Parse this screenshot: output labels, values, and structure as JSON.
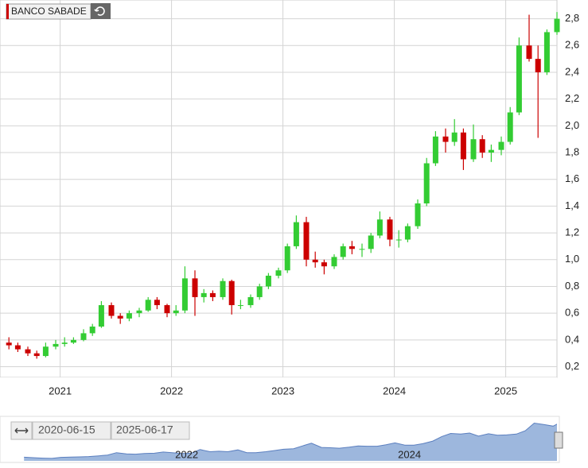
{
  "chart_data": {
    "type": "candlestick",
    "title": "BANCO SABADE",
    "range_start": "2020-06-15",
    "range_end": "2025-06-17",
    "up_color": "#33cc33",
    "down_color": "#cc0000",
    "grid": true,
    "xlim": [
      2020.46,
      2025.46
    ],
    "xticks": [
      2021,
      2022,
      2023,
      2024,
      2025
    ],
    "ylim": [
      0.12,
      2.94
    ],
    "yticks": [
      {
        "value": 0.2,
        "label": "0,2"
      },
      {
        "value": 0.4,
        "label": "0,4"
      },
      {
        "value": 0.6,
        "label": "0,6"
      },
      {
        "value": 0.8,
        "label": "0,8"
      },
      {
        "value": 1.0,
        "label": "1,0"
      },
      {
        "value": 1.2,
        "label": "1,2"
      },
      {
        "value": 1.4,
        "label": "1,4"
      },
      {
        "value": 1.6,
        "label": "1,6"
      },
      {
        "value": 1.8,
        "label": "1,8"
      },
      {
        "value": 2.0,
        "label": "2,0"
      },
      {
        "value": 2.2,
        "label": "2,2"
      },
      {
        "value": 2.4,
        "label": "2,4"
      },
      {
        "value": 2.6,
        "label": "2,6"
      },
      {
        "value": 2.8,
        "label": "2,8"
      }
    ],
    "navigator_xticks": [
      2022,
      2024
    ],
    "navigator_color": "#9db7dd",
    "x": [
      2020.54,
      2020.62,
      2020.71,
      2020.79,
      2020.87,
      2020.96,
      2021.04,
      2021.12,
      2021.21,
      2021.29,
      2021.37,
      2021.46,
      2021.54,
      2021.62,
      2021.71,
      2021.79,
      2021.87,
      2021.96,
      2022.04,
      2022.12,
      2022.21,
      2022.29,
      2022.37,
      2022.46,
      2022.54,
      2022.62,
      2022.71,
      2022.79,
      2022.87,
      2022.96,
      2023.04,
      2023.12,
      2023.21,
      2023.29,
      2023.37,
      2023.46,
      2023.54,
      2023.62,
      2023.71,
      2023.79,
      2023.87,
      2023.96,
      2024.04,
      2024.12,
      2024.21,
      2024.29,
      2024.37,
      2024.46,
      2024.54,
      2024.62,
      2024.71,
      2024.79,
      2024.87,
      2024.96,
      2025.04,
      2025.12,
      2025.21,
      2025.29,
      2025.37,
      2025.46
    ],
    "open": [
      0.38,
      0.36,
      0.33,
      0.3,
      0.28,
      0.35,
      0.37,
      0.38,
      0.4,
      0.45,
      0.5,
      0.66,
      0.58,
      0.56,
      0.6,
      0.62,
      0.7,
      0.66,
      0.6,
      0.62,
      0.86,
      0.72,
      0.75,
      0.72,
      0.84,
      0.66,
      0.66,
      0.72,
      0.8,
      0.88,
      0.92,
      1.1,
      1.28,
      1.0,
      0.98,
      0.95,
      1.02,
      1.1,
      1.08,
      1.08,
      1.18,
      1.3,
      1.15,
      1.15,
      1.25,
      1.42,
      1.72,
      1.92,
      1.88,
      1.95,
      1.75,
      1.9,
      1.8,
      1.82,
      1.88,
      2.1,
      2.6,
      2.5,
      2.4,
      2.7
    ],
    "high": [
      0.42,
      0.38,
      0.35,
      0.32,
      0.38,
      0.4,
      0.42,
      0.42,
      0.48,
      0.52,
      0.69,
      0.68,
      0.6,
      0.62,
      0.64,
      0.72,
      0.72,
      0.67,
      0.66,
      0.95,
      0.92,
      0.78,
      0.77,
      0.86,
      0.85,
      0.7,
      0.74,
      0.82,
      0.9,
      0.94,
      1.12,
      1.33,
      1.32,
      1.06,
      1.0,
      1.04,
      1.12,
      1.14,
      1.12,
      1.2,
      1.36,
      1.32,
      1.22,
      1.27,
      1.45,
      1.76,
      1.96,
      1.98,
      2.05,
      1.98,
      2.01,
      1.93,
      1.86,
      1.92,
      2.14,
      2.66,
      2.83,
      2.6,
      2.72,
      2.85
    ],
    "low": [
      0.33,
      0.31,
      0.28,
      0.26,
      0.27,
      0.33,
      0.35,
      0.37,
      0.39,
      0.43,
      0.49,
      0.56,
      0.52,
      0.54,
      0.57,
      0.61,
      0.63,
      0.57,
      0.58,
      0.6,
      0.58,
      0.68,
      0.69,
      0.7,
      0.59,
      0.63,
      0.64,
      0.7,
      0.78,
      0.86,
      0.9,
      1.08,
      0.95,
      0.94,
      0.89,
      0.93,
      1.0,
      1.04,
      1.02,
      1.05,
      1.16,
      1.1,
      1.09,
      1.13,
      1.23,
      1.4,
      1.7,
      1.8,
      1.85,
      1.67,
      1.73,
      1.76,
      1.73,
      1.78,
      1.86,
      2.08,
      2.48,
      1.91,
      2.38,
      2.68
    ],
    "close": [
      0.36,
      0.33,
      0.3,
      0.28,
      0.35,
      0.37,
      0.38,
      0.4,
      0.45,
      0.5,
      0.66,
      0.58,
      0.56,
      0.6,
      0.62,
      0.7,
      0.66,
      0.6,
      0.62,
      0.86,
      0.72,
      0.75,
      0.72,
      0.84,
      0.66,
      0.66,
      0.72,
      0.8,
      0.88,
      0.92,
      1.1,
      1.28,
      1.0,
      0.98,
      0.95,
      1.02,
      1.1,
      1.08,
      1.08,
      1.18,
      1.3,
      1.15,
      1.15,
      1.25,
      1.42,
      1.72,
      1.92,
      1.88,
      1.95,
      1.75,
      1.9,
      1.8,
      1.82,
      1.88,
      2.1,
      2.6,
      2.5,
      2.4,
      2.7,
      2.8
    ]
  }
}
